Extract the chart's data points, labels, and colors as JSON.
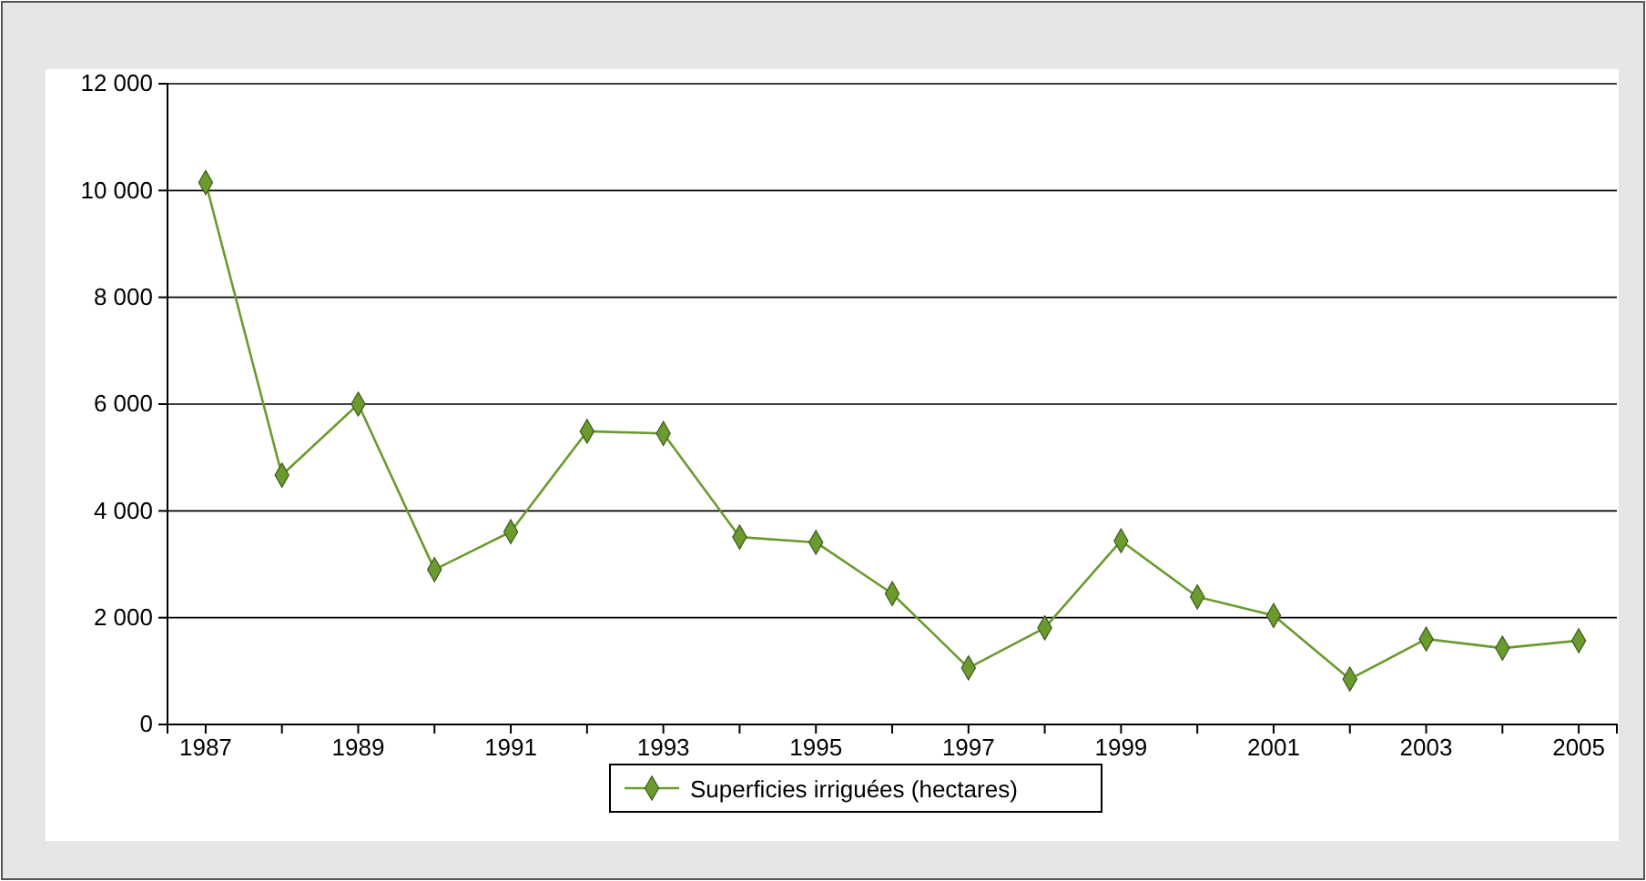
{
  "chart_data": {
    "type": "line",
    "categories": [
      "1987",
      null,
      "1989",
      null,
      "1991",
      null,
      "1993",
      null,
      "1995",
      null,
      "1997",
      null,
      "1999",
      null,
      "2001",
      null,
      "2003",
      null,
      "2005"
    ],
    "series": [
      {
        "name": "Superficies irriguées (hectares)",
        "color": "#6b9a2e",
        "values": [
          10150,
          4670,
          6000,
          2900,
          3610,
          5490,
          5450,
          3510,
          3410,
          2450,
          1060,
          1810,
          3440,
          2390,
          2040,
          850,
          1600,
          1430,
          1570
        ]
      }
    ],
    "ylim": [
      0,
      12000
    ],
    "yticks": [
      {
        "value": 0,
        "label": "0"
      },
      {
        "value": 2000,
        "label": "2 000"
      },
      {
        "value": 4000,
        "label": "4 000"
      },
      {
        "value": 6000,
        "label": "6 000"
      },
      {
        "value": 8000,
        "label": "8 000"
      },
      {
        "value": 10000,
        "label": "10 000"
      },
      {
        "value": 12000,
        "label": "12 000"
      }
    ],
    "grid": "y",
    "legend": "bottom",
    "marker": "diamond",
    "line_style": "solid"
  }
}
